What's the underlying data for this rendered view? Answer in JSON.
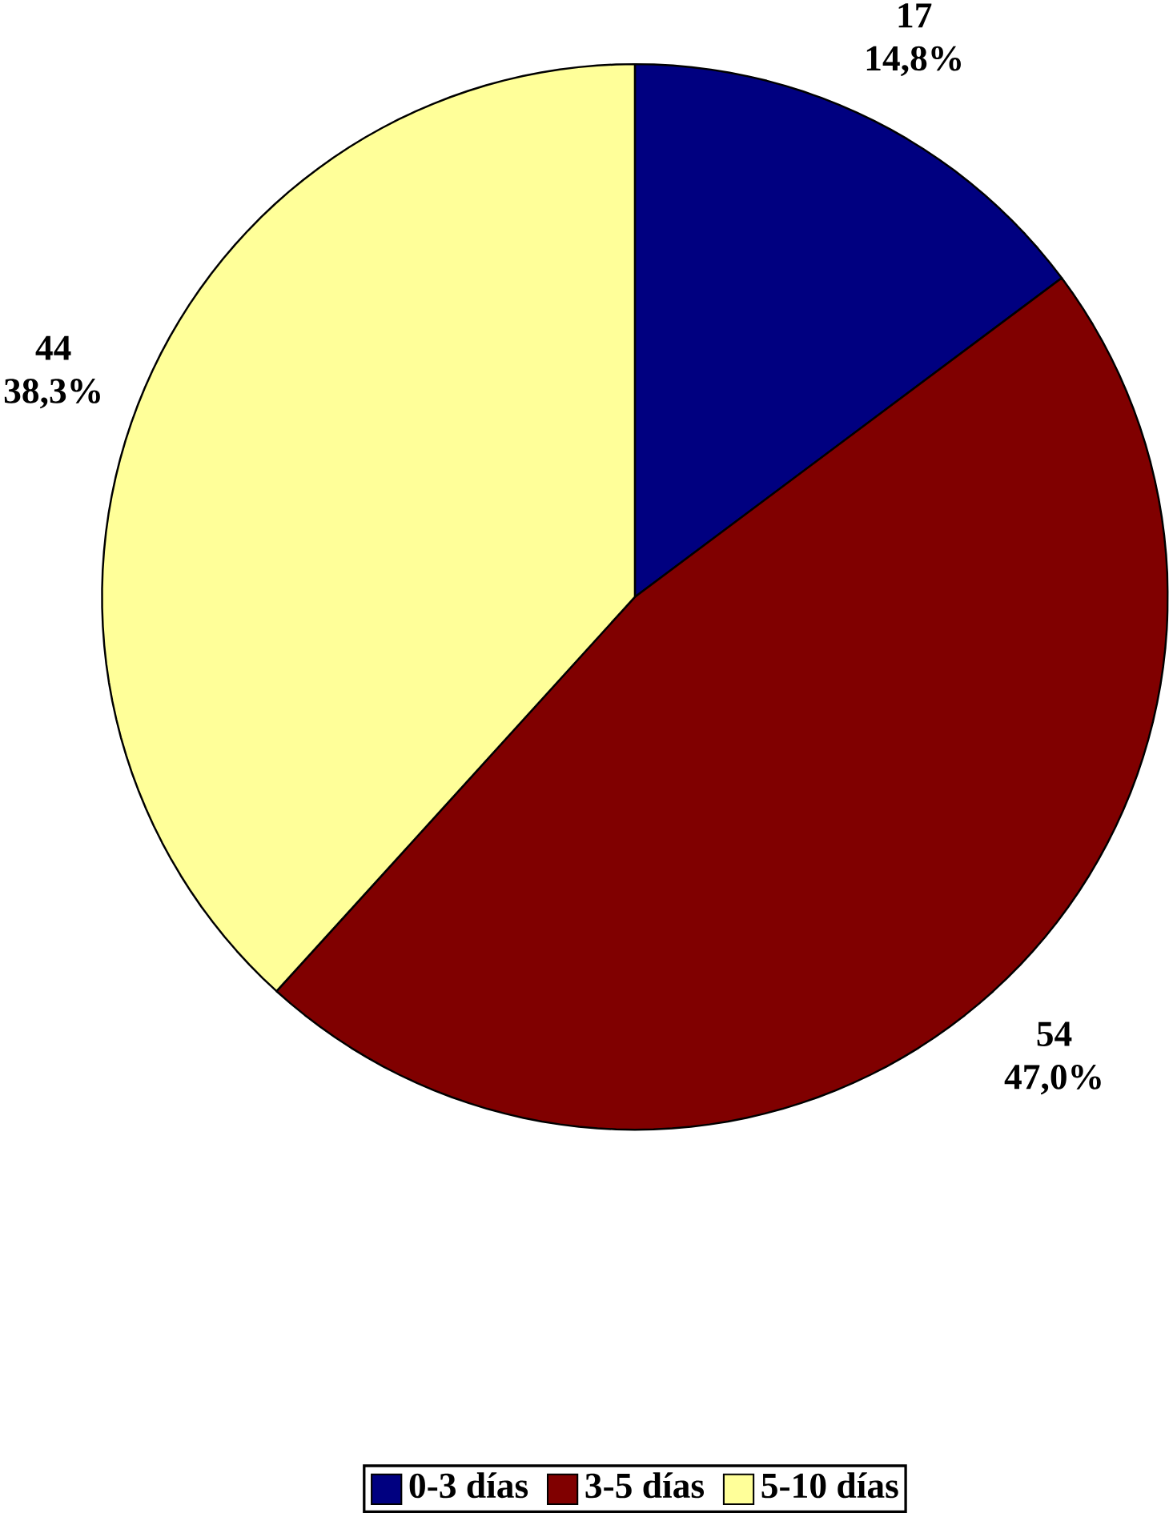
{
  "chart_data": {
    "type": "pie",
    "categories": [
      "0-3 días",
      "3-5 días",
      "5-10 días"
    ],
    "values": [
      14.8,
      47.0,
      38.3
    ],
    "colors": [
      "#000080",
      "#800000",
      "#ffff99"
    ],
    "value_labels": [
      "14,8%",
      "47,0%",
      "38,3%"
    ],
    "annotations": [
      "17",
      "54",
      "44"
    ],
    "legend": "bottom"
  }
}
